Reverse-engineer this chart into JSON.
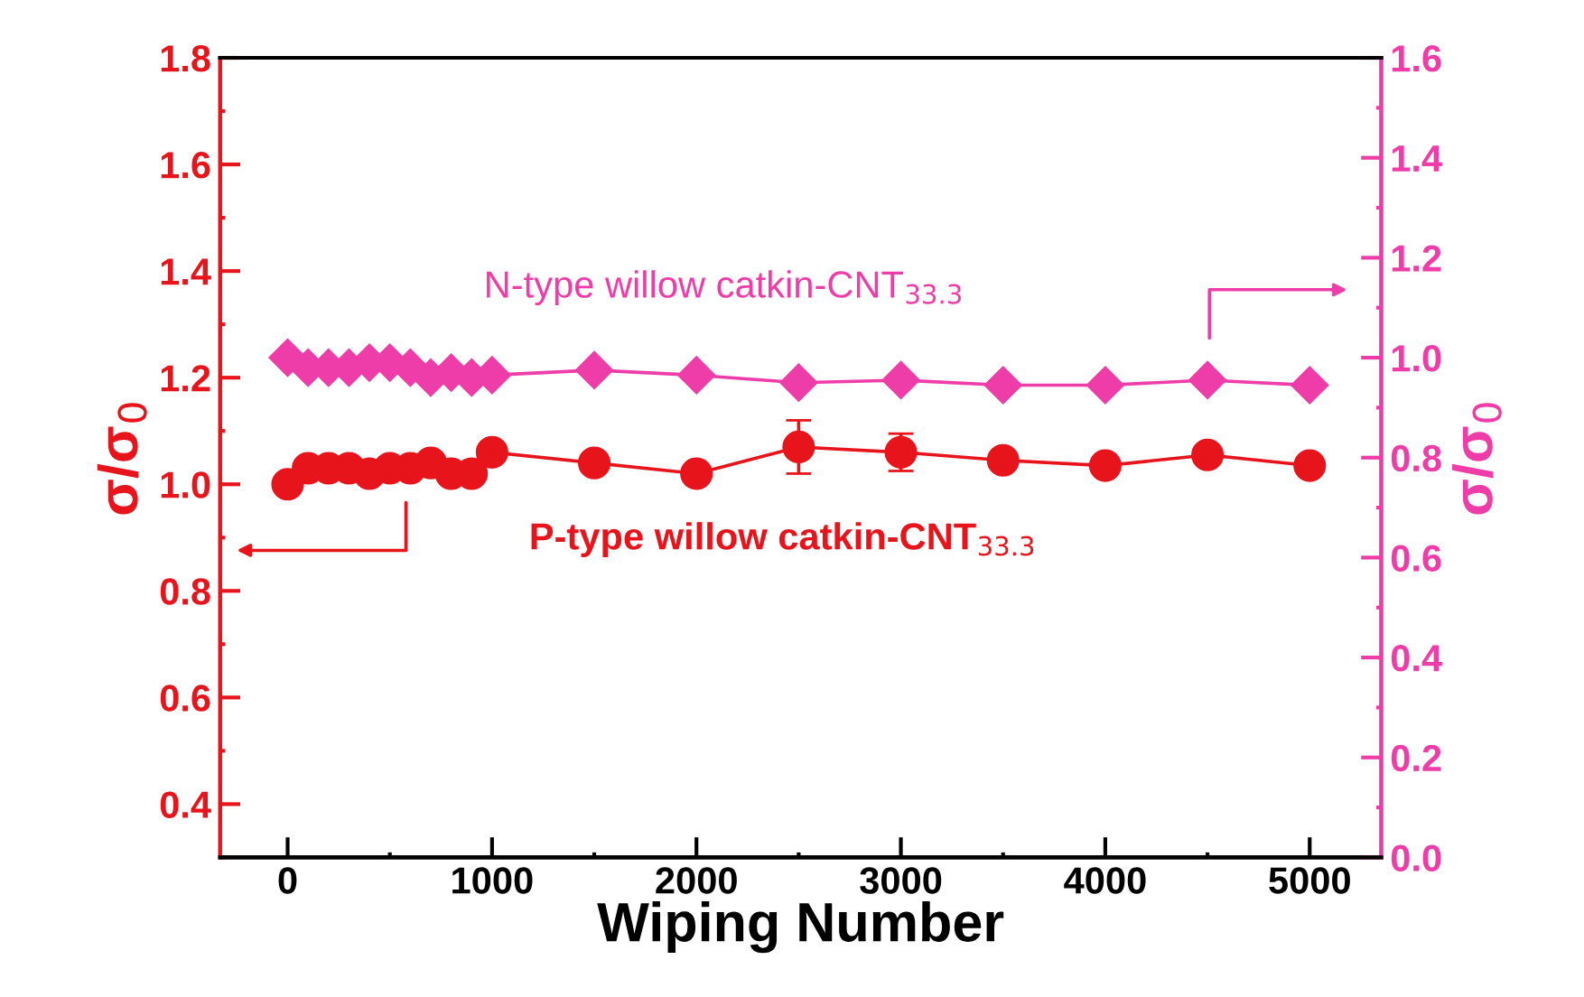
{
  "chart_data": {
    "type": "line",
    "xlabel": "Wiping Number",
    "ylabel": "σ/σ$_{0}$",
    "y2label": "σ/σ$_{0}$",
    "x": [
      0,
      100,
      200,
      300,
      400,
      500,
      600,
      700,
      800,
      900,
      1000,
      1500,
      2000,
      2500,
      3000,
      3500,
      4000,
      4500,
      5000
    ],
    "series": [
      {
        "name": "P-type willow catkin-CNT$_{33.3}$",
        "color": "#e8141c",
        "marker": "circle",
        "values": [
          1.0,
          1.03,
          1.03,
          1.03,
          1.02,
          1.03,
          1.03,
          1.04,
          1.02,
          1.02,
          1.06,
          1.04,
          1.02,
          1.07,
          1.06,
          1.045,
          1.035,
          1.055,
          1.035
        ],
        "errors": [
          null,
          null,
          null,
          null,
          null,
          null,
          null,
          null,
          null,
          null,
          null,
          null,
          null,
          0.05,
          0.035,
          null,
          null,
          null,
          null
        ]
      },
      {
        "name": "N-type willow catkin-CNT$_{33.3}$",
        "color": "#ee3ca8",
        "marker": "diamond",
        "axis": "y2",
        "values": [
          1.0,
          0.98,
          0.98,
          0.98,
          0.99,
          0.99,
          0.98,
          0.96,
          0.97,
          0.96,
          0.965,
          0.975,
          0.965,
          0.95,
          0.955,
          0.945,
          0.945,
          0.955,
          0.945
        ]
      }
    ],
    "xlim": [
      -330,
      5350
    ],
    "xticks": [
      0,
      1000,
      2000,
      3000,
      4000,
      5000
    ],
    "ylim": [
      0.3,
      1.8
    ],
    "yticks": [
      {
        "value": 0.4,
        "label": "0.4"
      },
      {
        "value": 0.6,
        "label": "0.6"
      },
      {
        "value": 0.8,
        "label": "0.8"
      },
      {
        "value": 1.0,
        "label": "1.0"
      },
      {
        "value": 1.2,
        "label": "1.2"
      },
      {
        "value": 1.4,
        "label": "1.4"
      },
      {
        "value": 1.6,
        "label": "1.6"
      },
      {
        "value": 1.8,
        "label": "1.8"
      }
    ],
    "y2lim": [
      0,
      1.6
    ],
    "y2ticks": [
      {
        "value": 0,
        "label": "0.0"
      },
      {
        "value": 0.2,
        "label": "0.2"
      },
      {
        "value": 0.4,
        "label": "0.4"
      },
      {
        "value": 0.6,
        "label": "0.6"
      },
      {
        "value": 0.8,
        "label": "0.8"
      },
      {
        "value": 1.0,
        "label": "1.0"
      },
      {
        "value": 1.2,
        "label": "1.2"
      },
      {
        "value": 1.4,
        "label": "1.4"
      },
      {
        "value": 1.6,
        "label": "1.6"
      }
    ],
    "grid": false,
    "line_style": "solid"
  }
}
